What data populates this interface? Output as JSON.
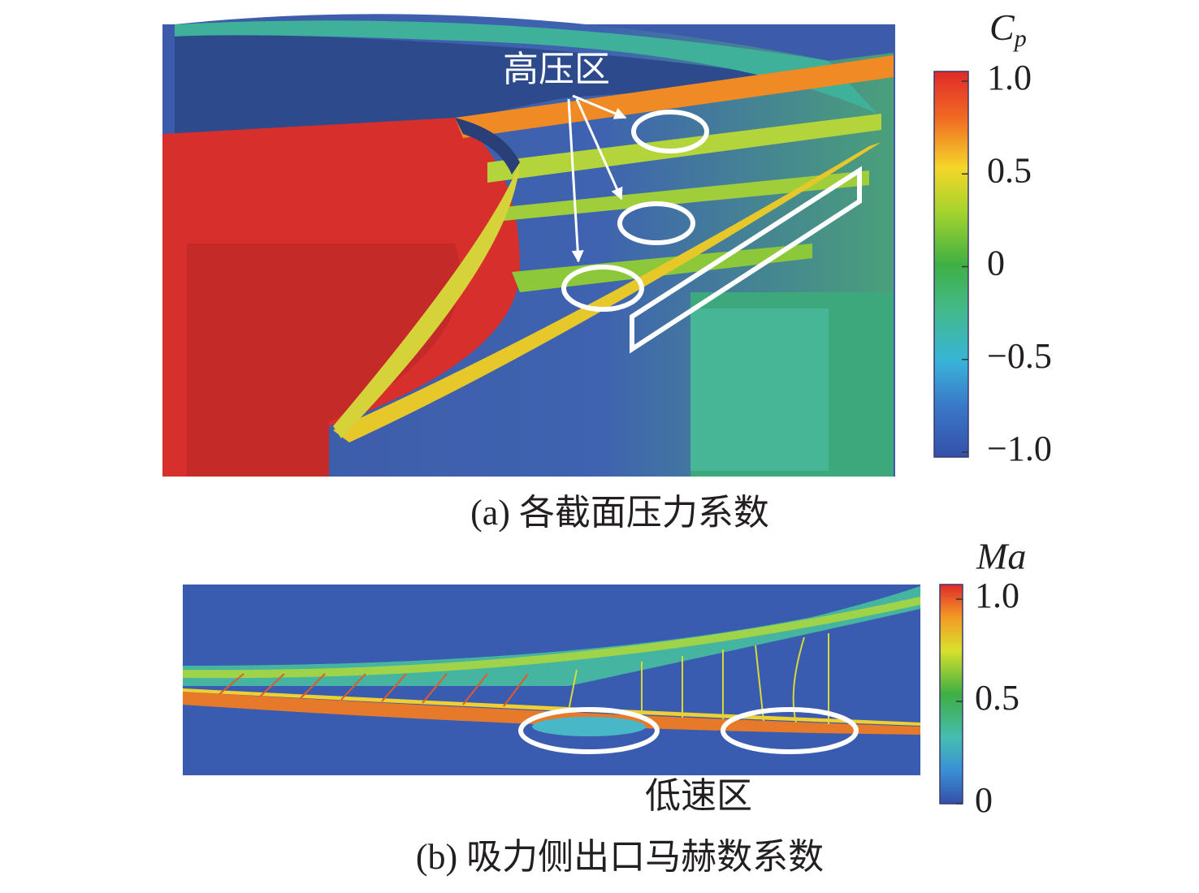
{
  "panel_a": {
    "annotation": "高压区",
    "caption": "(a) 各截面压力系数",
    "colorbar": {
      "title": {
        "symbol": "C",
        "subscript": "p"
      },
      "lim": [
        -1,
        1
      ],
      "ticks": [
        {
          "value": 1,
          "label": "1.0"
        },
        0.5,
        0,
        {
          "value": -0.5,
          "label": "−0.5"
        },
        {
          "value": -1,
          "label": "−1.0"
        }
      ]
    }
  },
  "panel_b": {
    "annotation": "低速区",
    "caption": "(b) 吸力侧出口马赫数系数",
    "colorbar": {
      "title": "Ma",
      "lim": [
        0,
        1
      ],
      "ticks": [
        {
          "value": 1,
          "label": "1.0"
        },
        0.5,
        0
      ]
    }
  }
}
